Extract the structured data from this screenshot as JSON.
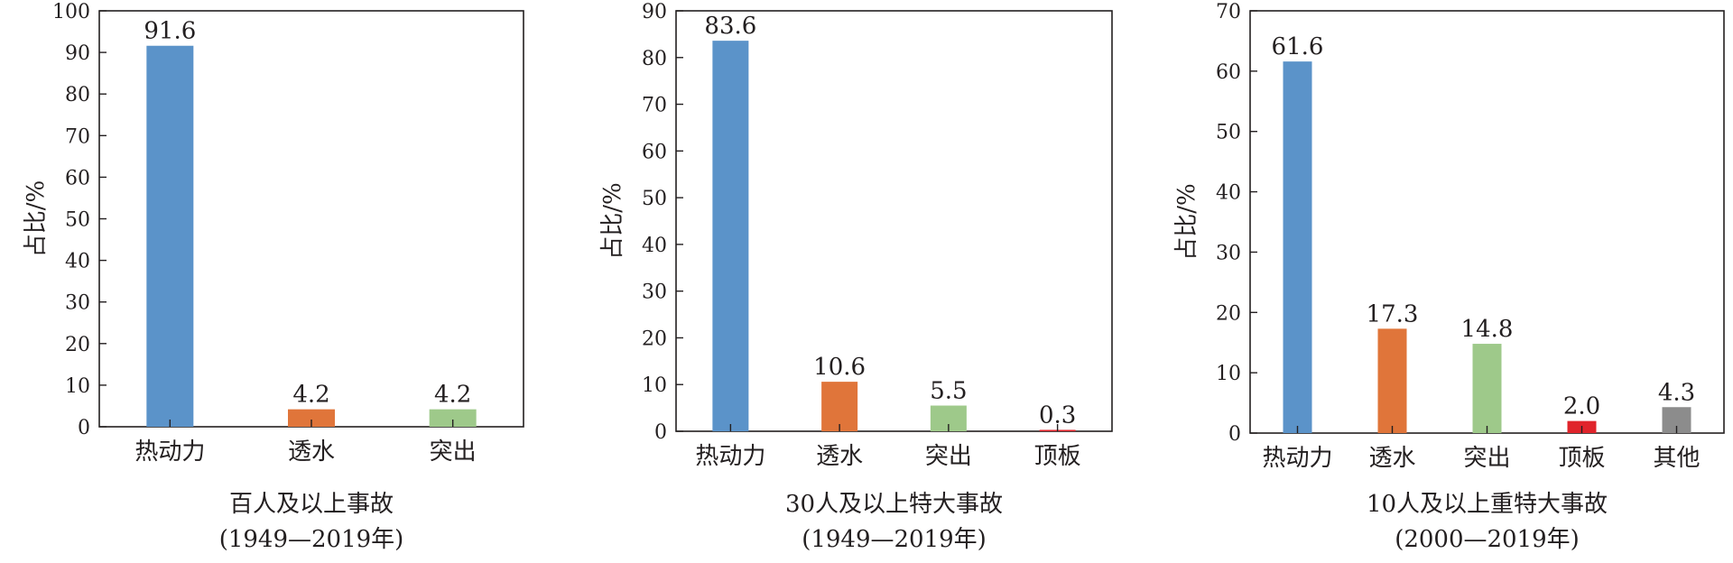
{
  "colors": {
    "blue": "#5b93c9",
    "orange": "#e0753a",
    "green": "#9ec98a",
    "red": "#e0242b",
    "gray": "#8c8c8c",
    "axis": "#231f20"
  },
  "chart_data": [
    {
      "type": "bar",
      "categories": [
        "热动力",
        "透水",
        "突出"
      ],
      "values": [
        91.6,
        4.2,
        4.2
      ],
      "value_labels": [
        "91.6",
        "4.2",
        "4.2"
      ],
      "bar_colors": [
        "blue",
        "orange",
        "green"
      ],
      "ylabel": "占比/%",
      "ylim": [
        0,
        100
      ],
      "yticks": [
        0,
        10,
        20,
        30,
        40,
        50,
        60,
        70,
        80,
        90,
        100
      ],
      "caption_line1": "百人及以上事故",
      "caption_line2": "(1949—2019年)",
      "grid": false
    },
    {
      "type": "bar",
      "categories": [
        "热动力",
        "透水",
        "突出",
        "顶板"
      ],
      "values": [
        83.6,
        10.6,
        5.5,
        0.3
      ],
      "value_labels": [
        "83.6",
        "10.6",
        "5.5",
        "0.3"
      ],
      "bar_colors": [
        "blue",
        "orange",
        "green",
        "red"
      ],
      "ylabel": "占比/%",
      "ylim": [
        0,
        90
      ],
      "yticks": [
        0,
        10,
        20,
        30,
        40,
        50,
        60,
        70,
        80,
        90
      ],
      "caption_line1": "30人及以上特大事故",
      "caption_line2": "(1949—2019年)",
      "grid": false
    },
    {
      "type": "bar",
      "categories": [
        "热动力",
        "透水",
        "突出",
        "顶板",
        "其他"
      ],
      "values": [
        61.6,
        17.3,
        14.8,
        2.0,
        4.3
      ],
      "value_labels": [
        "61.6",
        "17.3",
        "14.8",
        "2.0",
        "4.3"
      ],
      "bar_colors": [
        "blue",
        "orange",
        "green",
        "red",
        "gray"
      ],
      "ylabel": "占比/%",
      "ylim": [
        0,
        70
      ],
      "yticks": [
        0,
        10,
        20,
        30,
        40,
        50,
        60,
        70
      ],
      "caption_line1": "10人及以上重特大事故",
      "caption_line2": "(2000—2019年)",
      "grid": false
    }
  ]
}
